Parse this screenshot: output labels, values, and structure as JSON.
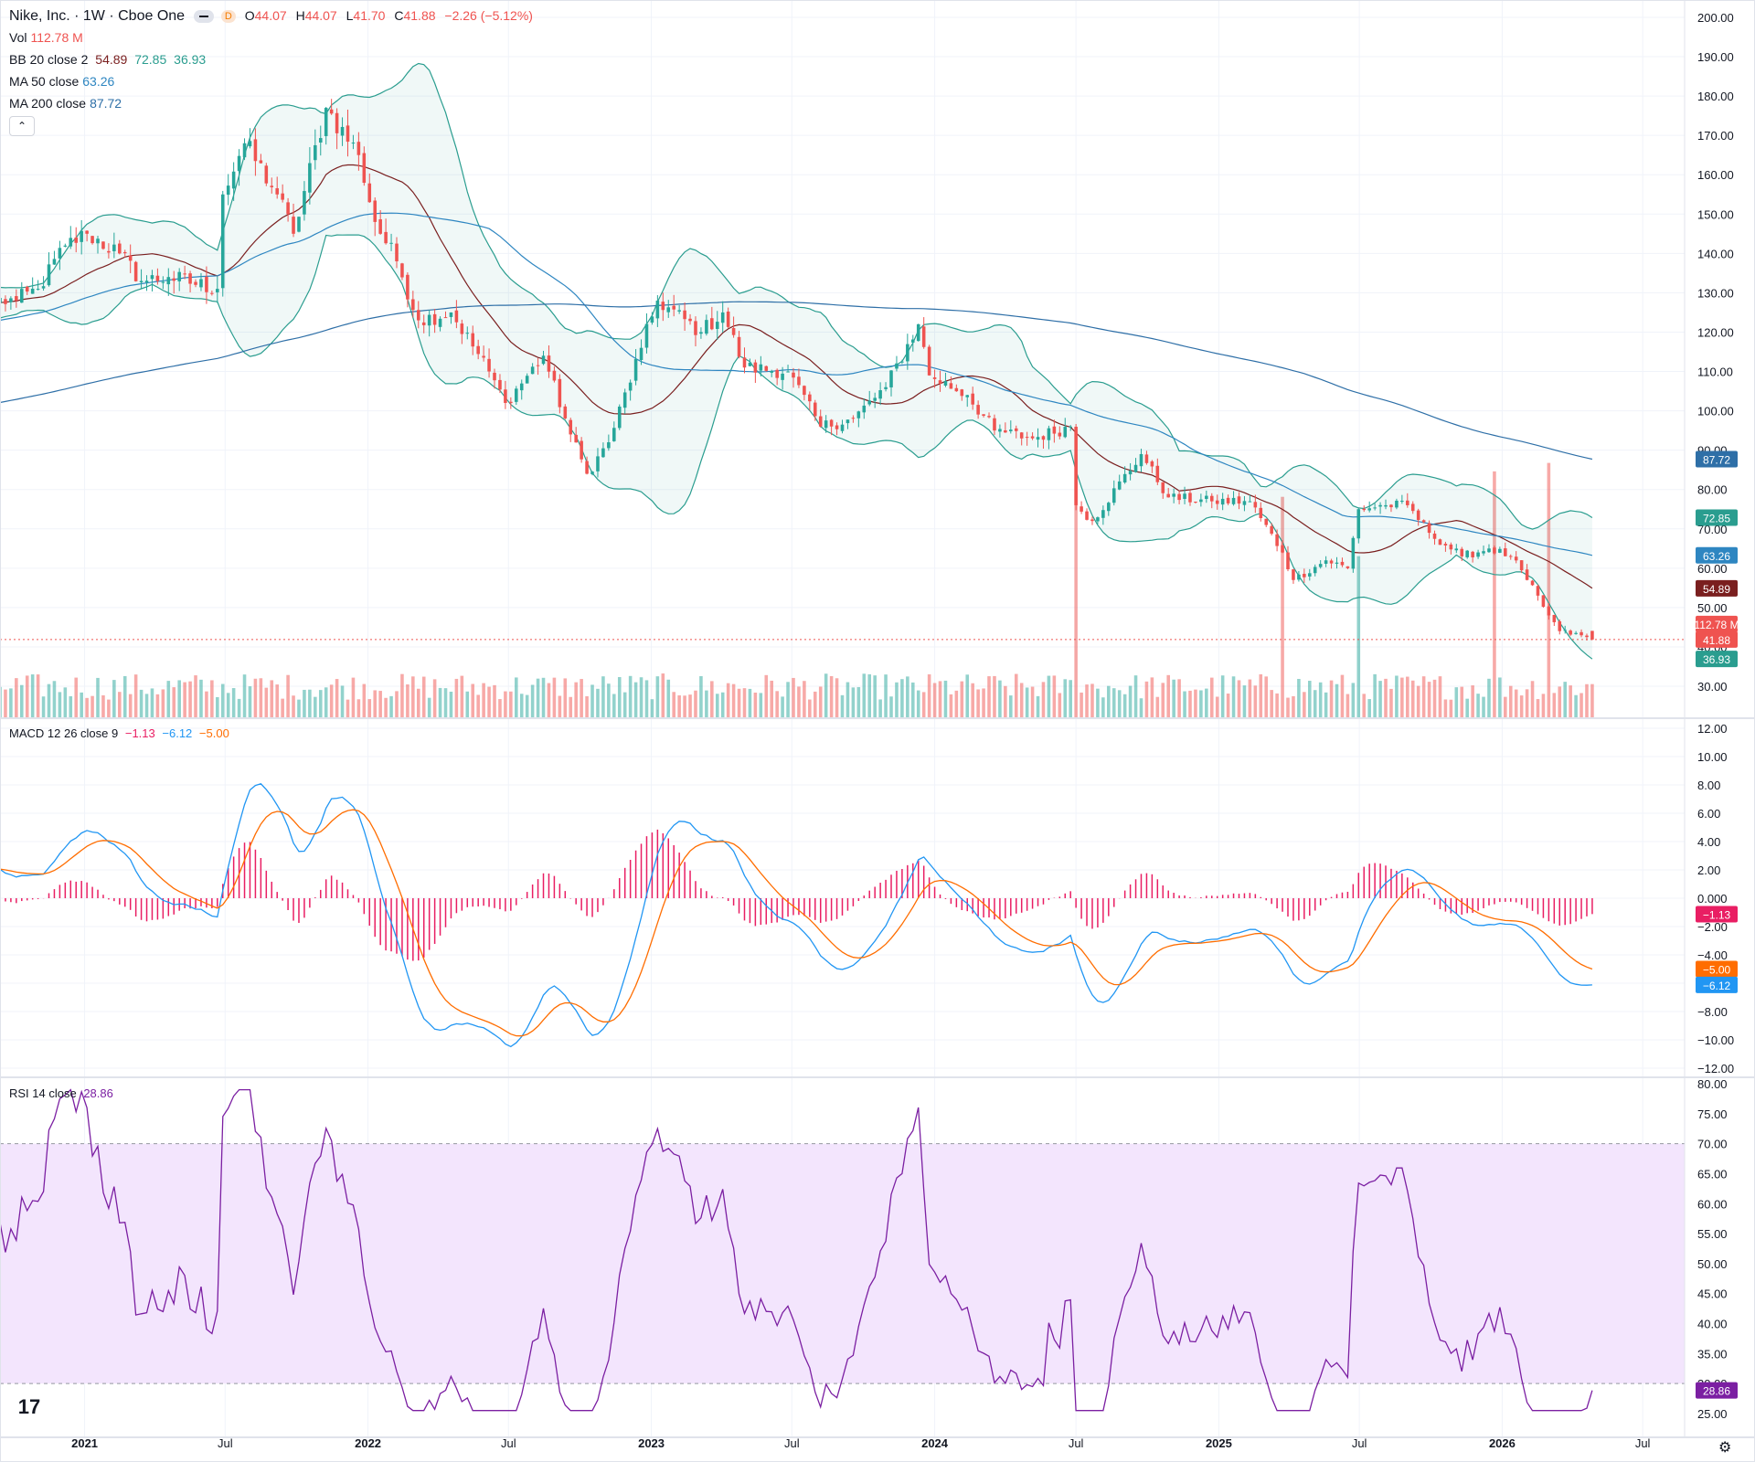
{
  "header": {
    "symbol_title": "Nike, Inc. · 1W · Cboe One",
    "interval_badge": "D",
    "o_label": "O",
    "o_value": "44.07",
    "h_label": "H",
    "h_value": "44.07",
    "l_label": "L",
    "l_value": "41.70",
    "c_label": "C",
    "c_value": "41.88",
    "change": "−2.26 (−5.12%)"
  },
  "legends": {
    "vol": {
      "label": "Vol",
      "value": "112.78 M"
    },
    "bb": {
      "label": "BB 20 close 2",
      "basis": "54.89",
      "upper": "72.85",
      "lower": "36.93"
    },
    "ma50": {
      "label": "MA 50 close",
      "value": "63.26"
    },
    "ma200": {
      "label": "MA 200 close",
      "value": "87.72"
    },
    "macd": {
      "label": "MACD 12 26 close 9",
      "hist": "−1.13",
      "macd": "−6.12",
      "signal": "−5.00"
    },
    "rsi": {
      "label": "RSI 14 close",
      "value": "28.86"
    }
  },
  "collapse_glyph": "⌃",
  "logo_glyph": "17",
  "colors": {
    "up": "#26a69a",
    "down": "#ef5350",
    "bb_band": "#2a9d8f",
    "bb_basis": "#7a1f1f",
    "ma50": "#2e86c1",
    "ma200": "#2e6fa7",
    "macd_line": "#2196f3",
    "signal_line": "#ff6d00",
    "hist": "#e91e63",
    "rsi_line": "#7b1fa2",
    "rsi_band": "#f3e5fd",
    "grid": "#f0f3fa"
  },
  "chart_data": [
    {
      "type": "candlestick",
      "title": "Nike, Inc. · 1W · Cboe One",
      "x_labels": [
        "2021",
        "Jul",
        "2022",
        "Jul",
        "2023",
        "Jul",
        "2024",
        "Jul",
        "2025",
        "Jul",
        "2026",
        "Jul"
      ],
      "y_ticks": [
        "200.00",
        "190.00",
        "180.00",
        "170.00",
        "160.00",
        "150.00",
        "140.00",
        "130.00",
        "120.00",
        "110.00",
        "100.00",
        "90.00",
        "80.00",
        "70.00",
        "60.00",
        "50.00",
        "40.00",
        "30.00"
      ],
      "ylim": [
        23,
        203
      ],
      "close_anchors": [
        [
          "2020-10-05",
          128
        ],
        [
          "2020-11-02",
          131
        ],
        [
          "2020-12-07",
          142
        ],
        [
          "2021-01-04",
          145
        ],
        [
          "2021-02-15",
          140
        ],
        [
          "2021-03-15",
          133
        ],
        [
          "2021-04-19",
          134
        ],
        [
          "2021-06-21",
          131
        ],
        [
          "2021-06-28",
          155
        ],
        [
          "2021-07-26",
          168
        ],
        [
          "2021-09-06",
          155
        ],
        [
          "2021-09-27",
          145
        ],
        [
          "2021-11-08",
          177
        ],
        [
          "2021-12-20",
          165
        ],
        [
          "2022-01-10",
          148
        ],
        [
          "2022-02-07",
          138
        ],
        [
          "2022-03-07",
          123
        ],
        [
          "2022-04-18",
          125
        ],
        [
          "2022-06-06",
          110
        ],
        [
          "2022-06-27",
          102
        ],
        [
          "2022-08-15",
          114
        ],
        [
          "2022-09-19",
          94
        ],
        [
          "2022-10-10",
          84
        ],
        [
          "2022-11-07",
          92
        ],
        [
          "2022-12-19",
          116
        ],
        [
          "2023-01-09",
          128
        ],
        [
          "2023-03-06",
          120
        ],
        [
          "2023-04-03",
          125
        ],
        [
          "2023-05-01",
          111
        ],
        [
          "2023-06-26",
          110
        ],
        [
          "2023-08-07",
          96
        ],
        [
          "2023-09-18",
          98
        ],
        [
          "2023-10-30",
          106
        ],
        [
          "2023-12-11",
          122
        ],
        [
          "2023-12-25",
          109
        ],
        [
          "2024-02-12",
          104
        ],
        [
          "2024-03-18",
          95
        ],
        [
          "2024-05-06",
          93
        ],
        [
          "2024-06-24",
          96
        ],
        [
          "2024-07-01",
          76
        ],
        [
          "2024-07-22",
          72
        ],
        [
          "2024-09-23",
          89
        ],
        [
          "2024-10-28",
          78
        ],
        [
          "2024-12-23",
          77
        ],
        [
          "2025-02-10",
          77
        ],
        [
          "2025-03-24",
          64
        ],
        [
          "2025-04-07",
          57
        ],
        [
          "2025-05-19",
          62
        ],
        [
          "2025-06-16",
          60
        ],
        [
          "2025-06-30",
          75
        ],
        [
          "2025-08-04",
          76
        ],
        [
          "2025-09-01",
          76
        ],
        [
          "2025-09-29",
          69
        ],
        [
          "2025-11-10",
          63
        ],
        [
          "2025-12-15",
          65
        ],
        [
          "2026-01-12",
          63
        ],
        [
          "2026-02-02",
          57
        ],
        [
          "2026-03-02",
          48
        ],
        [
          "2026-03-16",
          44
        ],
        [
          "2026-04-20",
          42.5
        ],
        [
          "2026-04-27",
          41.88
        ]
      ],
      "last": {
        "open": 44.07,
        "high": 44.07,
        "low": 41.7,
        "close": 41.88
      },
      "bb_last": {
        "upper": 72.85,
        "basis": 54.89,
        "lower": 36.93
      },
      "ma50_last": 63.26,
      "ma200_last": 87.72,
      "last_volume": "112.78 M",
      "volume_spikes": [
        [
          "2024-07-01",
          3.1
        ],
        [
          "2025-03-24",
          2.6
        ],
        [
          "2025-06-30",
          1.9
        ],
        [
          "2025-12-22",
          2.9
        ],
        [
          "2026-03-02",
          3.0
        ]
      ]
    },
    {
      "type": "line",
      "title": "MACD 12 26 close 9",
      "y_ticks": [
        "12.00",
        "10.00",
        "8.00",
        "6.00",
        "4.00",
        "2.00",
        "0.000",
        "−2.00",
        "−4.00",
        "−6.00",
        "−8.00",
        "−10.00",
        "−12.00"
      ],
      "ylim": [
        -12,
        12
      ],
      "series": [
        {
          "name": "MACD",
          "last": -6.12
        },
        {
          "name": "Signal",
          "last": -5.0
        },
        {
          "name": "Histogram",
          "last": -1.13
        }
      ]
    },
    {
      "type": "line",
      "title": "RSI 14 close",
      "y_ticks": [
        "80.00",
        "75.00",
        "70.00",
        "65.00",
        "60.00",
        "55.00",
        "50.00",
        "45.00",
        "40.00",
        "35.00",
        "30.00",
        "25.00"
      ],
      "ylim": [
        24,
        80
      ],
      "band": [
        30,
        70
      ],
      "last": 28.86
    }
  ]
}
